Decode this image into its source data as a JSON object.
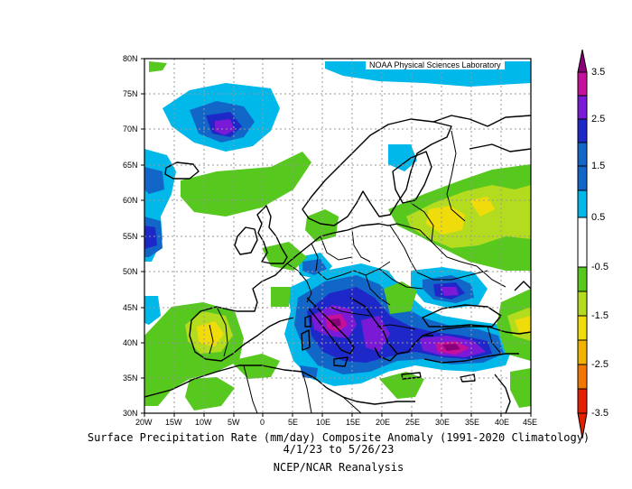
{
  "map": {
    "credit": "NOAA Physical Sciences Laboratory",
    "lat_labels": [
      "80N",
      "75N",
      "70N",
      "65N",
      "60N",
      "55N",
      "50N",
      "45N",
      "40N",
      "35N",
      "30N"
    ],
    "lon_labels": [
      "20W",
      "15W",
      "10W",
      "5W",
      "0",
      "5E",
      "10E",
      "15E",
      "20E",
      "25E",
      "30E",
      "35E",
      "40E",
      "45E"
    ],
    "extent": {
      "lon_min": -20,
      "lon_max": 45,
      "lat_min": 30,
      "lat_max": 80
    }
  },
  "caption": {
    "title": "Surface Precipitation Rate (mm/day) Composite Anomaly (1991-2020 Climatology)",
    "dates": "4/1/23  to 5/26/23",
    "source": "NCEP/NCAR Reanalysis"
  },
  "colorbar": {
    "labels": [
      "3.5",
      "2.5",
      "1.5",
      "0.5",
      "-0.5",
      "-1.5",
      "-2.5",
      "-3.5"
    ],
    "colors": {
      "purple_dark": "#8a0078",
      "magenta": "#c4109a",
      "violet": "#7a1ad6",
      "blue_dark": "#1e28c8",
      "blue": "#1266c8",
      "cyan": "#00b8ea",
      "white": "#ffffff",
      "green": "#56c81e",
      "yellow_green": "#b4dc1e",
      "yellow": "#f0dc0a",
      "orange_yellow": "#f0b400",
      "orange": "#f07800",
      "red": "#e61e00"
    }
  }
}
